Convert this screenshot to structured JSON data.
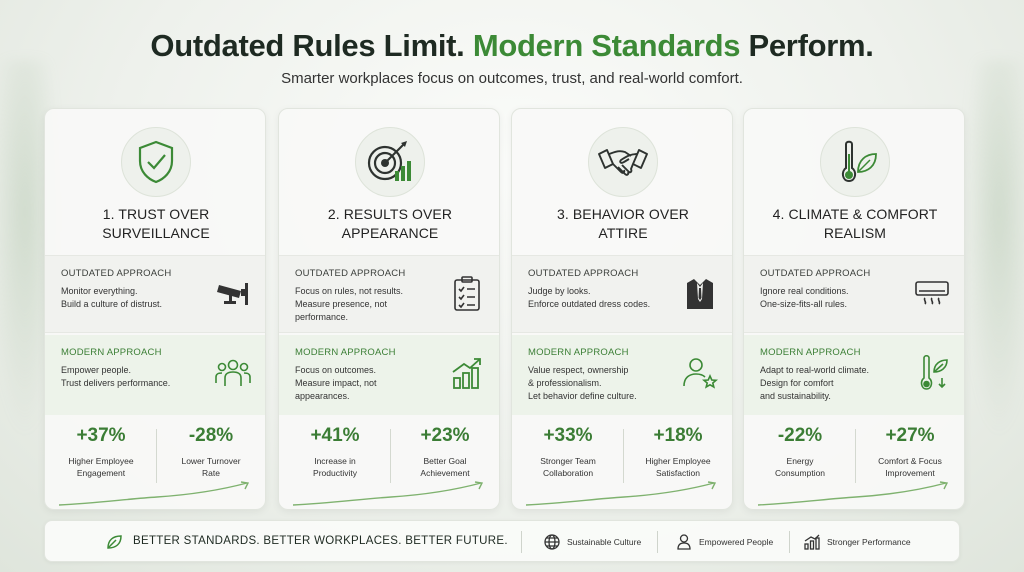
{
  "header": {
    "title_part1": "Outdated Rules Limit.",
    "title_part2": "Modern Standards",
    "title_part3": "Perform.",
    "subtitle": "Smarter workplaces focus on outcomes, trust, and real-world comfort."
  },
  "colors": {
    "accent": "#3c8a36",
    "dark": "#1e2a22",
    "modern_bg": "#edf3ea"
  },
  "cards": [
    {
      "icon": "shield-check-icon",
      "heading_line1": "1. TRUST OVER",
      "heading_line2": "SURVEILLANCE",
      "outdated_label": "OUTDATED APPROACH",
      "outdated_lines": [
        "Monitor everything.",
        "Build a culture of distrust."
      ],
      "outdated_icon": "security-camera-icon",
      "modern_label": "MODERN APPROACH",
      "modern_lines": [
        "Empower people.",
        "Trust delivers performance."
      ],
      "modern_icon": "people-group-icon",
      "stats": [
        {
          "value": "+37%",
          "label_line1": "Higher Employee",
          "label_line2": "Engagement"
        },
        {
          "value": "-28%",
          "label_line1": "Lower Turnover",
          "label_line2": "Rate"
        }
      ]
    },
    {
      "icon": "target-arrow-icon",
      "heading_line1": "2. RESULTS OVER",
      "heading_line2": "APPEARANCE",
      "outdated_label": "OUTDATED APPROACH",
      "outdated_lines": [
        "Focus on rules, not results.",
        "Measure presence, not",
        "performance."
      ],
      "outdated_icon": "checklist-icon",
      "modern_label": "MODERN APPROACH",
      "modern_lines": [
        "Focus on outcomes.",
        "Measure impact, not",
        "appearances."
      ],
      "modern_icon": "growth-chart-icon",
      "stats": [
        {
          "value": "+41%",
          "label_line1": "Increase in",
          "label_line2": "Productivity"
        },
        {
          "value": "+23%",
          "label_line1": "Better Goal",
          "label_line2": "Achievement"
        }
      ]
    },
    {
      "icon": "handshake-icon",
      "heading_line1": "3. BEHAVIOR OVER",
      "heading_line2": "ATTIRE",
      "outdated_label": "OUTDATED APPROACH",
      "outdated_lines": [
        "Judge by looks.",
        "Enforce outdated dress codes."
      ],
      "outdated_icon": "suit-icon",
      "modern_label": "MODERN APPROACH",
      "modern_lines": [
        "Value respect, ownership",
        "& professionalism.",
        "Let behavior define culture."
      ],
      "modern_icon": "people-star-icon",
      "stats": [
        {
          "value": "+33%",
          "label_line1": "Stronger Team",
          "label_line2": "Collaboration"
        },
        {
          "value": "+18%",
          "label_line1": "Higher Employee",
          "label_line2": "Satisfaction"
        }
      ]
    },
    {
      "icon": "thermometer-leaf-icon",
      "heading_line1": "4. CLIMATE & COMFORT",
      "heading_line2": "REALISM",
      "outdated_label": "OUTDATED APPROACH",
      "outdated_lines": [
        "Ignore real conditions.",
        "One-size-fits-all rules."
      ],
      "outdated_icon": "air-conditioner-icon",
      "modern_label": "MODERN APPROACH",
      "modern_lines": [
        "Adapt to real-world climate.",
        "Design for comfort",
        "and sustainability."
      ],
      "modern_icon": "thermometer-leaf-small-icon",
      "stats": [
        {
          "value": "-22%",
          "label_line1": "Energy",
          "label_line2": "Consumption"
        },
        {
          "value": "+27%",
          "label_line1": "Comfort & Focus",
          "label_line2": "Improvement"
        }
      ]
    }
  ],
  "footer": {
    "tagline": "BETTER STANDARDS. BETTER WORKPLACES. BETTER FUTURE.",
    "items": [
      {
        "icon": "globe-icon",
        "label": "Sustainable Culture"
      },
      {
        "icon": "person-icon",
        "label": "Empowered People"
      },
      {
        "icon": "bar-chart-icon",
        "label": "Stronger Performance"
      }
    ]
  }
}
